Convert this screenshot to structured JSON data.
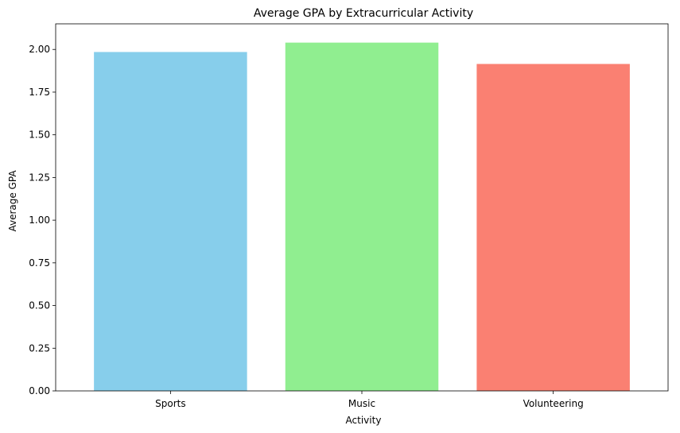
{
  "chart_data": {
    "type": "bar",
    "title": "Average GPA by Extracurricular Activity",
    "xlabel": "Activity",
    "ylabel": "Average GPA",
    "categories": [
      "Sports",
      "Music",
      "Volunteering"
    ],
    "values": [
      1.985,
      2.04,
      1.915
    ],
    "colors": [
      "#87ceeb",
      "#90ee90",
      "#fa8072"
    ],
    "ylim": [
      0,
      2.15
    ],
    "yticks": [
      "0.00",
      "0.25",
      "0.50",
      "0.75",
      "1.00",
      "1.25",
      "1.50",
      "1.75",
      "2.00"
    ],
    "grid": false,
    "legend": "none"
  }
}
